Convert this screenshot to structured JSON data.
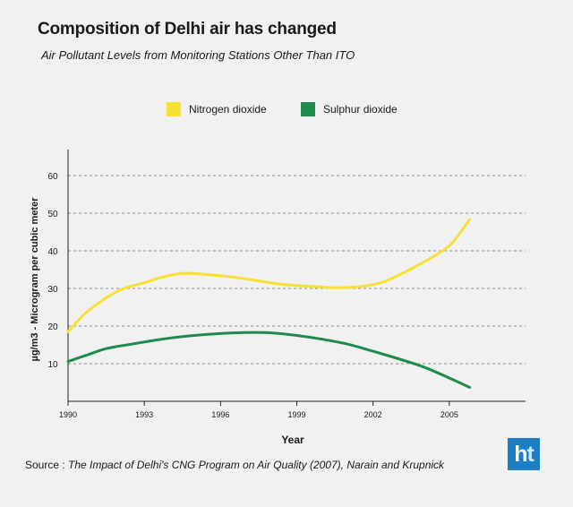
{
  "header": {
    "title": "Composition of Delhi air has changed",
    "subtitle": "Air Pollutant Levels from Monitoring Stations Other Than ITO"
  },
  "legend": {
    "items": [
      {
        "label": "Nitrogen dioxide",
        "color": "#f7e135"
      },
      {
        "label": "Sulphur dioxide",
        "color": "#1e8a4c"
      }
    ]
  },
  "chart_data": {
    "type": "line",
    "title": "Composition of Delhi air has changed",
    "subtitle": "Air Pollutant Levels from Monitoring Stations Other Than ITO",
    "xlabel": "Year",
    "ylabel": "µg/m3 - Microgram per cubic meter",
    "xlim": [
      1990,
      2008
    ],
    "ylim": [
      0,
      65
    ],
    "x_ticks": [
      "1990",
      "1993",
      "1996",
      "1999",
      "2002",
      "2005"
    ],
    "y_ticks": [
      "10",
      "20",
      "30",
      "40",
      "50",
      "60"
    ],
    "grid": "horizontal dashed",
    "legend_position": "top",
    "series": [
      {
        "name": "Nitrogen dioxide",
        "color": "#f7e135",
        "x": [
          1990,
          1990.7,
          1991.5,
          1992.2,
          1993,
          1993.7,
          1994.5,
          1995.5,
          1996.5,
          1997.5,
          1998.5,
          1999.5,
          2000.5,
          2001.5,
          2002.3,
          2003,
          2003.8,
          2004.5,
          2005.1,
          2005.8
        ],
        "y": [
          18.5,
          23.5,
          27.5,
          30,
          31.5,
          33,
          34,
          33.7,
          33,
          32,
          31,
          30.6,
          30.2,
          30.5,
          31.5,
          33.5,
          36.3,
          39,
          42,
          48.3
        ]
      },
      {
        "name": "Sulphur dioxide",
        "color": "#1e8a4c",
        "x": [
          1990,
          1990.7,
          1991.5,
          1992.5,
          1993.5,
          1994.5,
          1995.5,
          1996.5,
          1997.3,
          1998,
          1999,
          2000,
          2001,
          2002,
          2003,
          2004,
          2005,
          2005.8
        ],
        "y": [
          10.6,
          12.2,
          14,
          15.2,
          16.3,
          17.2,
          17.8,
          18.2,
          18.3,
          18.2,
          17.5,
          16.5,
          15.2,
          13.3,
          11.3,
          9.1,
          6.2,
          3.7
        ]
      }
    ]
  },
  "source": {
    "prefix": "Source : ",
    "text": "The Impact of Delhi's CNG Program on Air Quality (2007), Narain and Krupnick"
  },
  "logo": {
    "h": "h",
    "t": "t"
  }
}
